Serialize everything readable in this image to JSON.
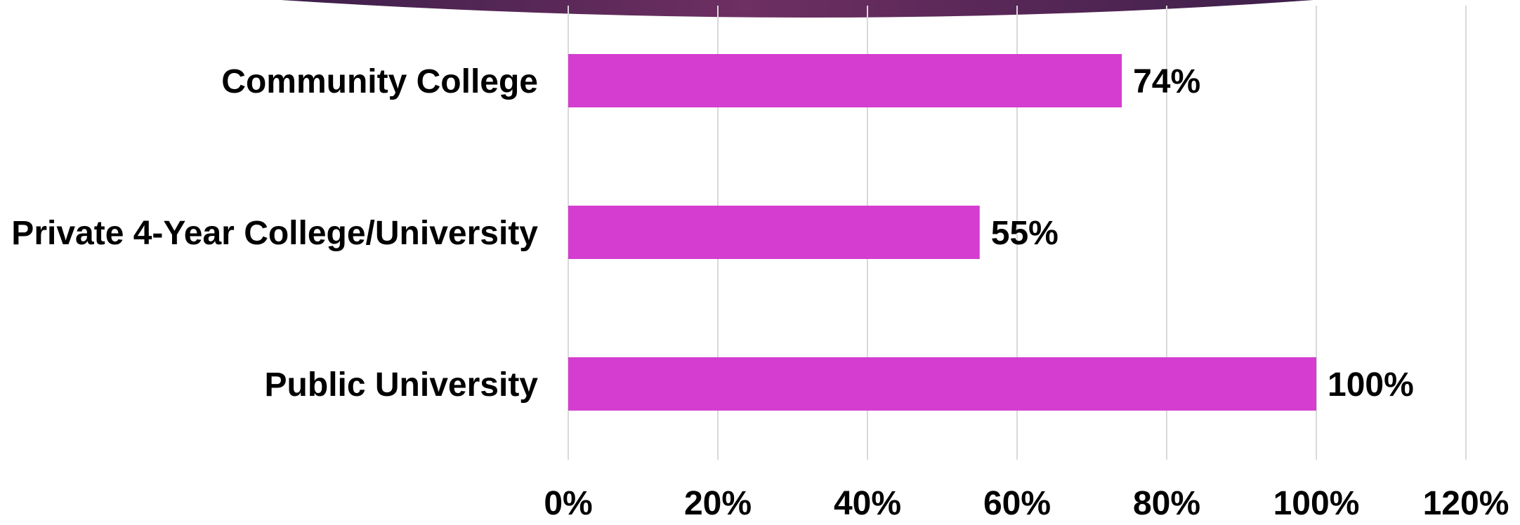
{
  "colors": {
    "bar": "#d43dcf",
    "gridline": "#d9d9d9",
    "text": "#000000",
    "banner_dark": "#3d1f4a",
    "banner_mid": "#6e2f62"
  },
  "chart_data": {
    "type": "bar",
    "orientation": "horizontal",
    "categories": [
      "Community College",
      "Private 4-Year College/University",
      "Public University"
    ],
    "values": [
      0.74,
      0.55,
      1.0
    ],
    "value_labels": [
      "74%",
      "55%",
      "100%"
    ],
    "xlim": [
      0,
      1.2
    ],
    "xticks": [
      0,
      0.2,
      0.4,
      0.6,
      0.8,
      1.0,
      1.2
    ],
    "xtick_labels": [
      "0%",
      "20%",
      "40%",
      "60%",
      "80%",
      "100%",
      "120%"
    ],
    "grid": "vertical",
    "legend": "none"
  }
}
